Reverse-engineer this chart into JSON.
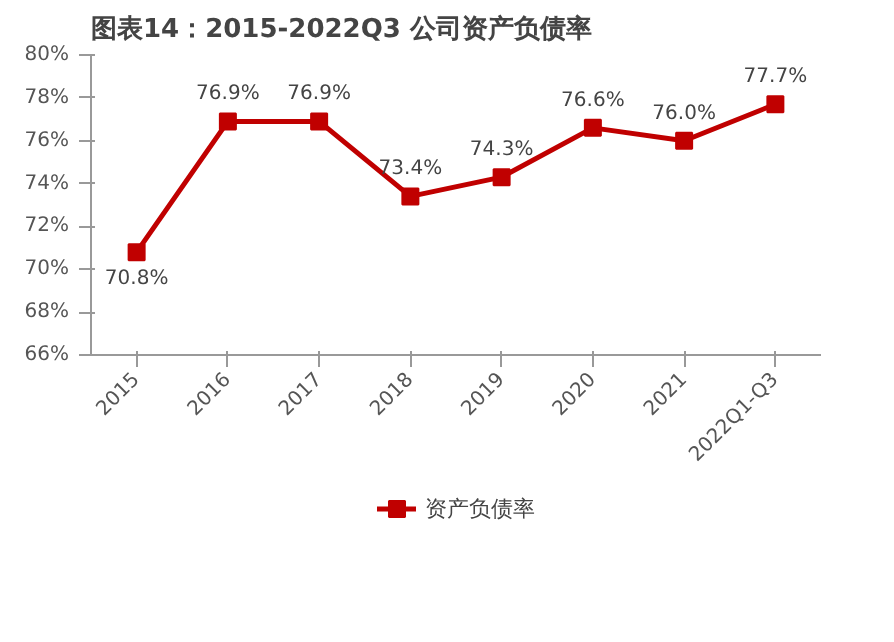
{
  "chart_data": {
    "type": "line",
    "title": "图表14：2015-2022Q3 公司资产负债率",
    "categories": [
      "2015",
      "2016",
      "2017",
      "2018",
      "2019",
      "2020",
      "2021",
      "2022Q1-Q3"
    ],
    "series": [
      {
        "name": "资产负债率",
        "color": "#c00000",
        "values": [
          70.8,
          76.9,
          76.9,
          73.4,
          74.3,
          76.6,
          76.0,
          77.7
        ],
        "value_labels": [
          "70.8%",
          "76.9%",
          "76.9%",
          "73.4%",
          "74.3%",
          "76.6%",
          "76.0%",
          "77.7%"
        ]
      }
    ],
    "ylim": [
      66,
      80
    ],
    "yticks": [
      {
        "value": 66,
        "label": "66%"
      },
      {
        "value": 68,
        "label": "68%"
      },
      {
        "value": 70,
        "label": "70%"
      },
      {
        "value": 72,
        "label": "72%"
      },
      {
        "value": 74,
        "label": "74%"
      },
      {
        "value": 76,
        "label": "76%"
      },
      {
        "value": 78,
        "label": "78%"
      },
      {
        "value": 80,
        "label": "80%"
      }
    ],
    "grid": false,
    "legend": "bottom",
    "marker": "square",
    "line_style": "solid"
  }
}
